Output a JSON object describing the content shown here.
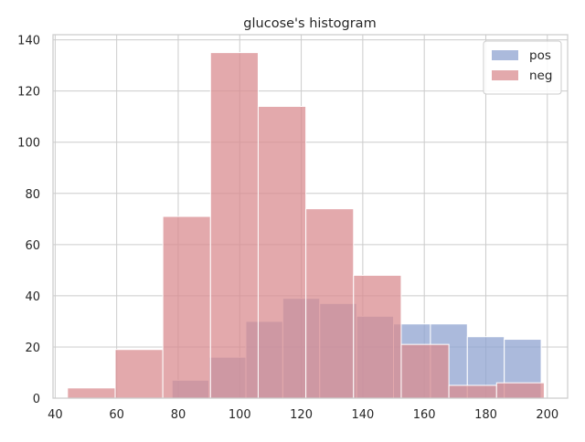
{
  "chart_data": {
    "type": "bar",
    "title": "glucose's histogram",
    "xlabel": "",
    "ylabel": "",
    "xlim": [
      39.3,
      206.6
    ],
    "ylim": [
      0,
      142
    ],
    "x_ticks": [
      40,
      60,
      80,
      100,
      120,
      140,
      160,
      180,
      200
    ],
    "y_ticks": [
      0,
      20,
      40,
      60,
      80,
      100,
      120,
      140
    ],
    "grid": true,
    "legend_position": "top-right",
    "series": [
      {
        "name": "pos",
        "color": "#8fa3d0",
        "bins": [
          {
            "x0": 78,
            "x1": 90,
            "value": 7
          },
          {
            "x0": 90,
            "x1": 102,
            "value": 16
          },
          {
            "x0": 102,
            "x1": 114,
            "value": 30
          },
          {
            "x0": 114,
            "x1": 126,
            "value": 39
          },
          {
            "x0": 126,
            "x1": 138,
            "value": 37
          },
          {
            "x0": 138,
            "x1": 150,
            "value": 32
          },
          {
            "x0": 150,
            "x1": 162,
            "value": 29
          },
          {
            "x0": 162,
            "x1": 174,
            "value": 29
          },
          {
            "x0": 174,
            "x1": 186,
            "value": 24
          },
          {
            "x0": 186,
            "x1": 198,
            "value": 23
          }
        ]
      },
      {
        "name": "neg",
        "color": "#d98c90",
        "bins": [
          {
            "x0": 44,
            "x1": 59.5,
            "value": 4
          },
          {
            "x0": 59.5,
            "x1": 75,
            "value": 19
          },
          {
            "x0": 75,
            "x1": 90.5,
            "value": 71
          },
          {
            "x0": 90.5,
            "x1": 106,
            "value": 135
          },
          {
            "x0": 106,
            "x1": 121.5,
            "value": 114
          },
          {
            "x0": 121.5,
            "x1": 137,
            "value": 74
          },
          {
            "x0": 137,
            "x1": 152.5,
            "value": 48
          },
          {
            "x0": 152.5,
            "x1": 168,
            "value": 21
          },
          {
            "x0": 168,
            "x1": 183.5,
            "value": 5
          },
          {
            "x0": 183.5,
            "x1": 199,
            "value": 6
          }
        ]
      }
    ]
  }
}
